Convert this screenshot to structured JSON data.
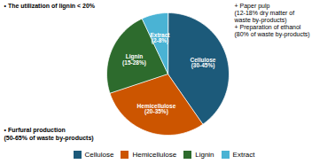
{
  "chart_data": {
    "type": "pie",
    "categories": [
      "Cellulose",
      "Hemicellulose",
      "Lignin",
      "Extract"
    ],
    "values": [
      37.5,
      27.5,
      21.5,
      6.5
    ],
    "colors": [
      "#1c5a7a",
      "#cc5500",
      "#2d6b2d",
      "#4ab3d4"
    ],
    "labels": [
      "Cellulose\n(30-45%)",
      "Hemicellulose\n(20-35%)",
      "Lignin\n(15-28%)",
      "Extract\n(2-8%)"
    ],
    "annotations": [
      "• The utilization of lignin < 20%",
      "+ Paper pulp\n(12-18% dry matter of\nwaste by-products)\n+ Preparation of ethanol\n(80% of waste by-products)",
      "• Furfural production\n(50-65% of waste by-products)"
    ],
    "legend": "bottom"
  }
}
